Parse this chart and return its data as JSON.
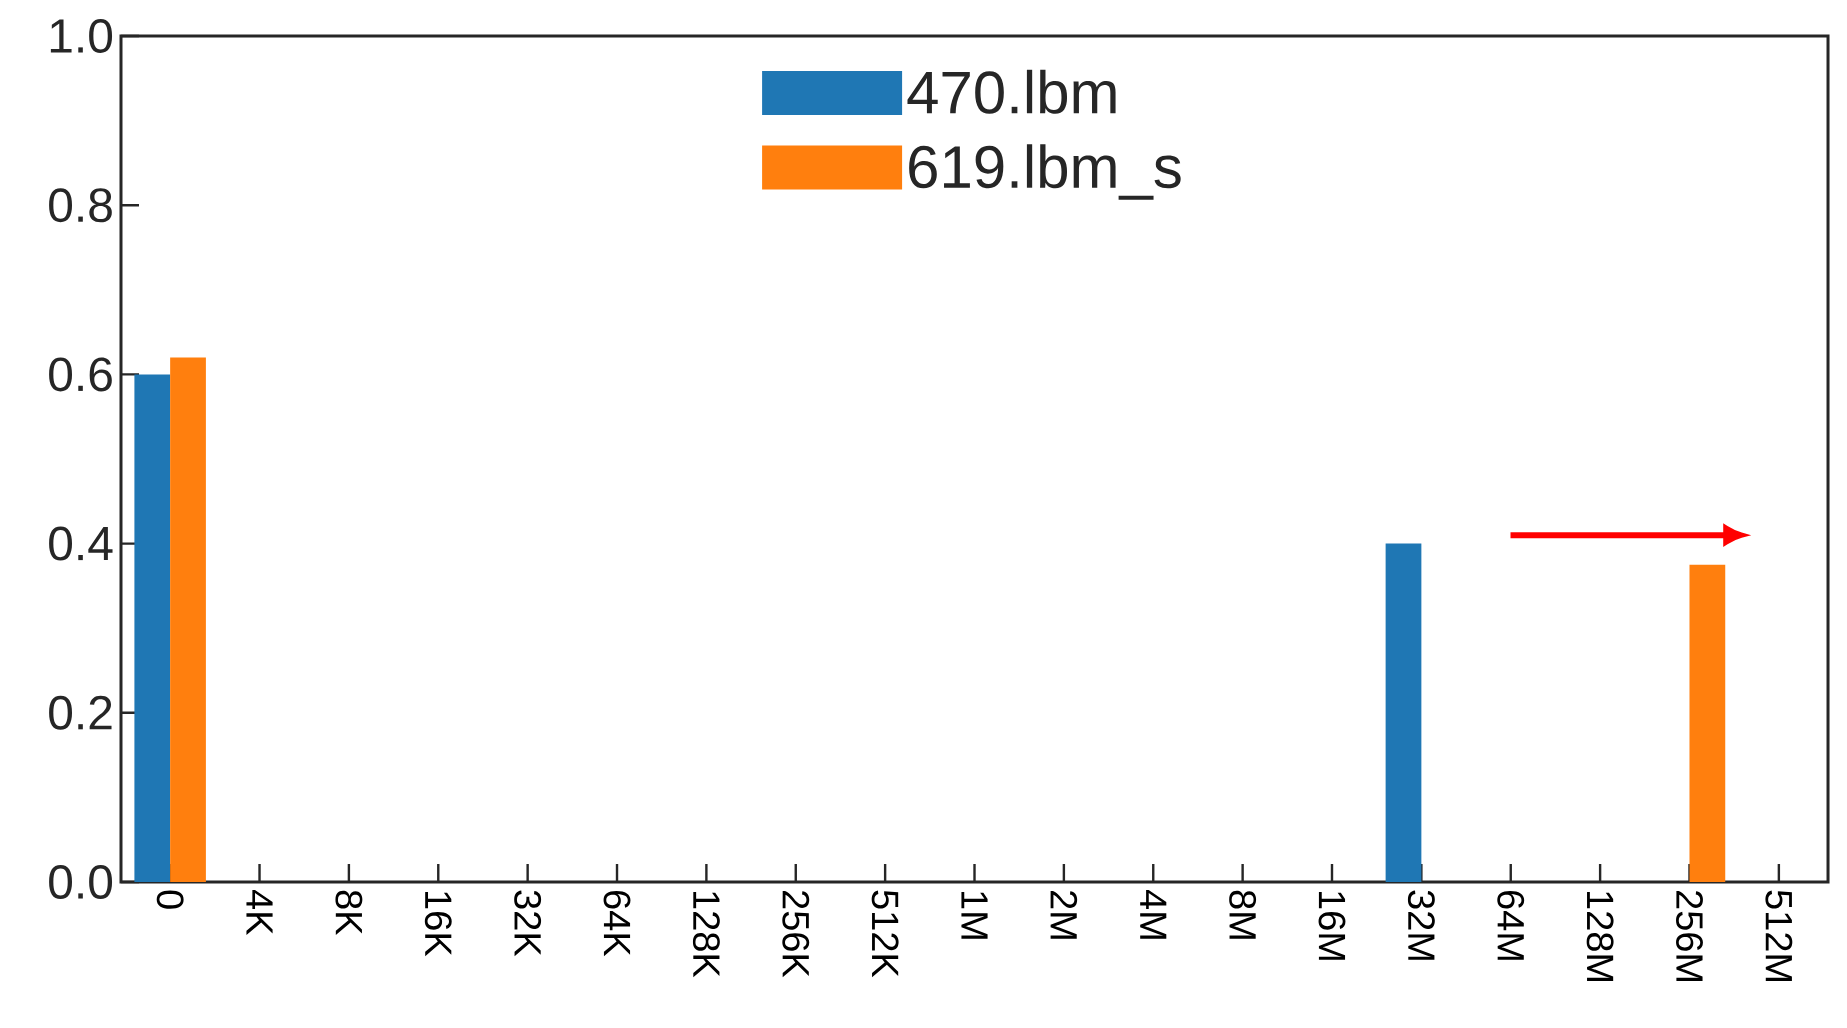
{
  "chart_data": {
    "type": "bar",
    "categories": [
      "0",
      "4K",
      "8K",
      "16K",
      "32K",
      "64K",
      "128K",
      "256K",
      "512K",
      "1M",
      "2M",
      "4M",
      "8M",
      "16M",
      "32M",
      "64M",
      "128M",
      "256M",
      "512M"
    ],
    "series": [
      {
        "name": "470.lbm",
        "color": "#1f77b4",
        "values": [
          0.6,
          0,
          0,
          0,
          0,
          0,
          0,
          0,
          0,
          0,
          0,
          0,
          0,
          0,
          0.4,
          0,
          0,
          0,
          null
        ]
      },
      {
        "name": "619.lbm_s",
        "color": "#ff7f0e",
        "values": [
          0.62,
          0,
          0,
          0,
          0,
          0,
          0,
          0,
          0,
          0,
          0,
          0,
          0,
          0,
          0,
          0,
          0,
          0.375,
          null
        ]
      }
    ],
    "ylim": [
      0,
      1
    ],
    "yticks": [
      {
        "value": 0,
        "label": "0.0"
      },
      0.2,
      0.4,
      0.6,
      0.8,
      {
        "value": 1,
        "label": "1.0"
      }
    ],
    "legend": "top",
    "grid": false
  }
}
